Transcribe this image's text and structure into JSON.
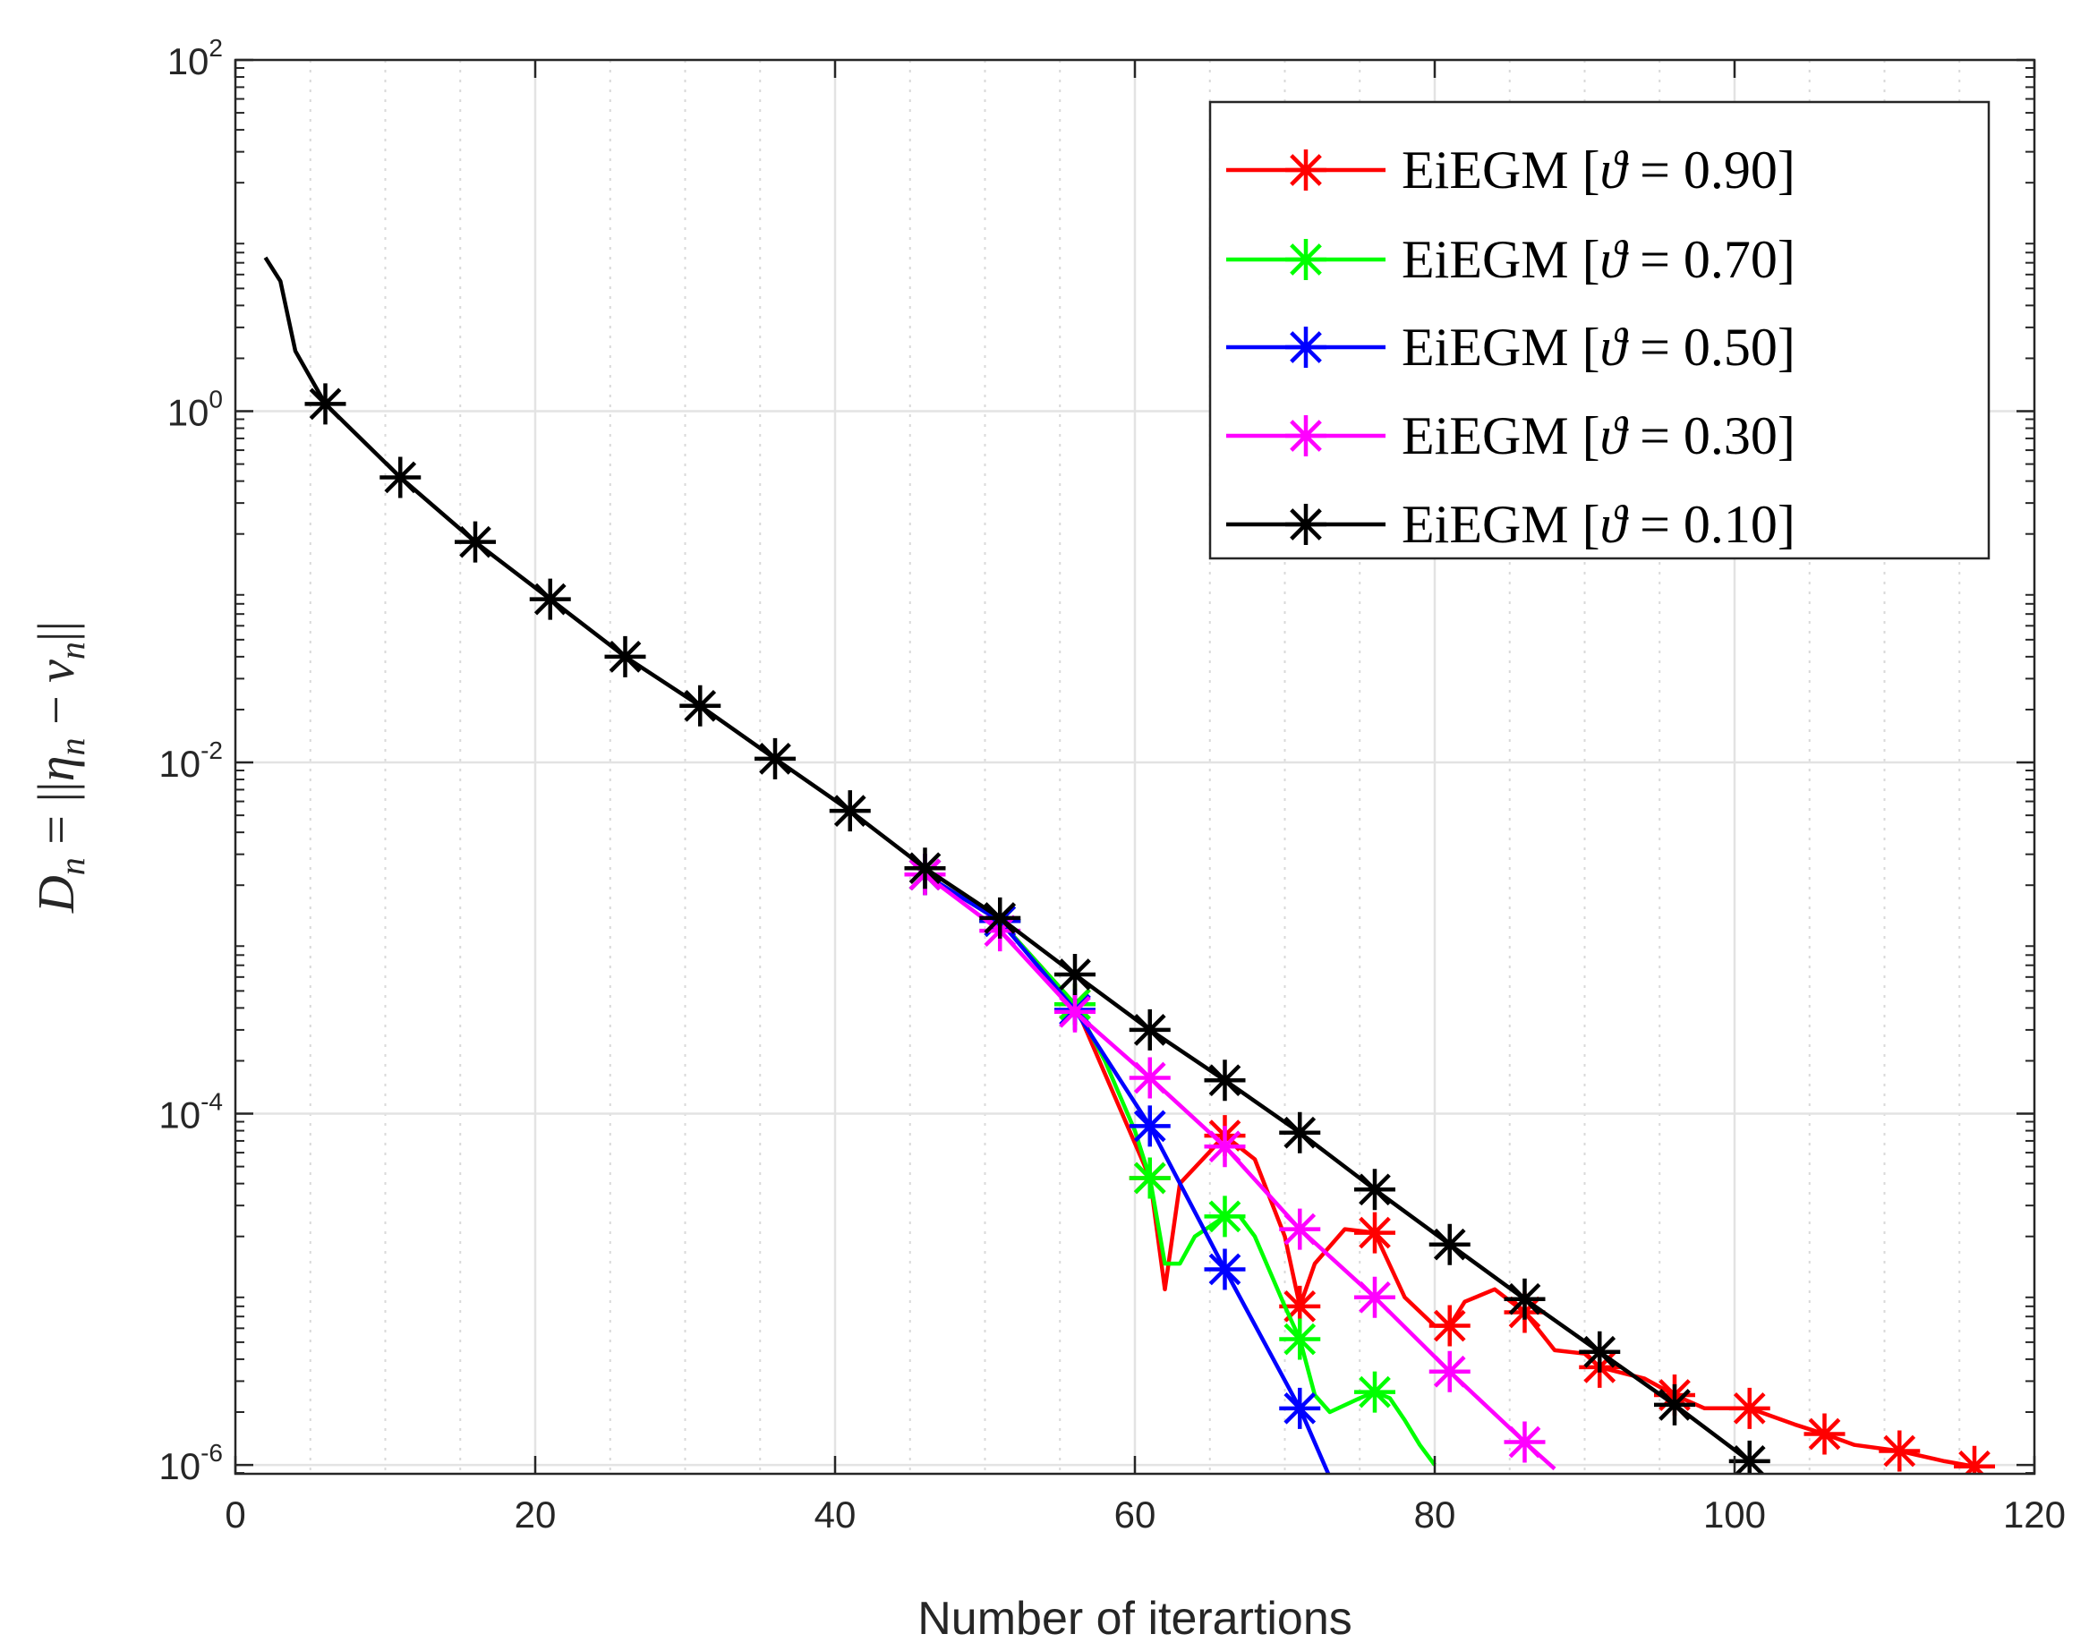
{
  "chart_data": {
    "type": "line",
    "title": "",
    "xlabel": "Number of iterartions",
    "ylabel": "D_n = ||η_n − v_n||",
    "ylabel_parts": {
      "lhs": "D",
      "lhs_sub": "n",
      "eq": " = ||",
      "eta": "η",
      "eta_sub": "n",
      "minus": " − ",
      "v": "v",
      "v_sub": "n",
      "close": "||"
    },
    "xlim": [
      0,
      120
    ],
    "ylim": [
      8.9e-07,
      100
    ],
    "yscale": "log",
    "grid": true,
    "legend_position": "top-right",
    "x_ticks": [
      0,
      20,
      40,
      60,
      80,
      100,
      120
    ],
    "y_ticks": [
      {
        "value": 1e-06,
        "base": "10",
        "exp": "-6"
      },
      {
        "value": 0.0001,
        "base": "10",
        "exp": "-4"
      },
      {
        "value": 0.01,
        "base": "10",
        "exp": "-2"
      },
      {
        "value": 1,
        "base": "10",
        "exp": "0"
      },
      {
        "value": 100,
        "base": "10",
        "exp": "2"
      }
    ],
    "series": [
      {
        "name": "EiEGM [ϑ = 0.90]",
        "legend_prefix": "EiEGM [",
        "theta_symbol": "ϑ",
        "legend_suffix": " = 0.90]",
        "color": "#ff0000",
        "x": [
          46,
          51,
          56,
          61,
          62,
          63,
          66,
          68,
          70,
          71,
          72,
          74,
          76,
          78,
          80,
          81,
          82,
          84,
          86,
          88,
          90,
          91,
          94,
          96,
          98,
          101,
          104,
          106,
          108,
          111,
          114,
          116
        ],
        "y": [
          0.0023,
          0.00125,
          0.00042,
          4.3e-05,
          1e-05,
          4e-05,
          7.5e-05,
          5.5e-05,
          2e-05,
          8e-06,
          1.4e-05,
          2.2e-05,
          2.1e-05,
          9e-06,
          6.2e-06,
          6.2e-06,
          8.5e-06,
          1e-05,
          7.4e-06,
          4.5e-06,
          4.3e-06,
          3.6e-06,
          3.1e-06,
          2.5e-06,
          2.1e-06,
          2.1e-06,
          1.7e-06,
          1.5e-06,
          1.3e-06,
          1.2e-06,
          1.05e-06,
          9.8e-07
        ],
        "markers_x": [
          46,
          51,
          56,
          61,
          66,
          71,
          76,
          81,
          86,
          91,
          96,
          101,
          106,
          111,
          116
        ]
      },
      {
        "name": "EiEGM [ϑ = 0.70]",
        "legend_prefix": "EiEGM [",
        "theta_symbol": "ϑ",
        "legend_suffix": " = 0.70]",
        "color": "#00ff00",
        "x": [
          46,
          51,
          56,
          58,
          60,
          61,
          62,
          63,
          64,
          66,
          67,
          68,
          70,
          71,
          72,
          73,
          75,
          76,
          77,
          78,
          79,
          80
        ],
        "y": [
          0.0023,
          0.00125,
          0.00042,
          0.0002,
          8e-05,
          4.3e-05,
          1.4e-05,
          1.4e-05,
          2e-05,
          2.6e-05,
          2.6e-05,
          2e-05,
          8e-06,
          5.2e-06,
          2.5e-06,
          2e-06,
          2.4e-06,
          2.6e-06,
          2.4e-06,
          1.8e-06,
          1.3e-06,
          1e-06
        ],
        "markers_x": [
          46,
          51,
          56,
          61,
          66,
          71,
          76
        ]
      },
      {
        "name": "EiEGM [ϑ = 0.50]",
        "legend_prefix": "EiEGM [",
        "theta_symbol": "ϑ",
        "legend_suffix": " = 0.50]",
        "color": "#0000ff",
        "x": [
          46,
          51,
          56,
          61,
          66,
          71,
          73
        ],
        "y": [
          0.0023,
          0.00125,
          0.00039,
          8.5e-05,
          1.3e-05,
          2.1e-06,
          8.5e-07
        ],
        "markers_x": [
          46,
          51,
          56,
          61,
          66,
          71
        ]
      },
      {
        "name": "EiEGM [ϑ = 0.30]",
        "legend_prefix": "EiEGM [",
        "theta_symbol": "ϑ",
        "legend_suffix": " = 0.30]",
        "color": "#ff00ff",
        "x": [
          46,
          51,
          56,
          61,
          66,
          71,
          76,
          81,
          86,
          88
        ],
        "y": [
          0.0023,
          0.0011,
          0.00038,
          0.00016,
          6.5e-05,
          2.2e-05,
          9e-06,
          3.4e-06,
          1.35e-06,
          9.5e-07
        ],
        "markers_x": [
          46,
          51,
          56,
          61,
          66,
          71,
          76,
          81,
          86
        ]
      },
      {
        "name": "EiEGM [ϑ = 0.10]",
        "legend_prefix": "EiEGM [",
        "theta_symbol": "ϑ",
        "legend_suffix": " = 0.10]",
        "color": "#000000",
        "x": [
          2,
          3,
          4,
          6,
          11,
          16,
          21,
          26,
          31,
          36,
          41,
          46,
          51,
          56,
          61,
          66,
          71,
          76,
          81,
          86,
          91,
          96,
          101
        ],
        "y": [
          7.5,
          5.5,
          2.2,
          1.1,
          0.42,
          0.18,
          0.085,
          0.04,
          0.021,
          0.0105,
          0.0053,
          0.0025,
          0.0013,
          0.00062,
          0.0003,
          0.000155,
          7.8e-05,
          3.7e-05,
          1.8e-05,
          8.8e-06,
          4.4e-06,
          2.2e-06,
          1.05e-06
        ],
        "markers_x": [
          6,
          11,
          16,
          21,
          26,
          31,
          36,
          41,
          46,
          51,
          56,
          61,
          66,
          71,
          76,
          81,
          86,
          91,
          96,
          101
        ]
      }
    ]
  }
}
